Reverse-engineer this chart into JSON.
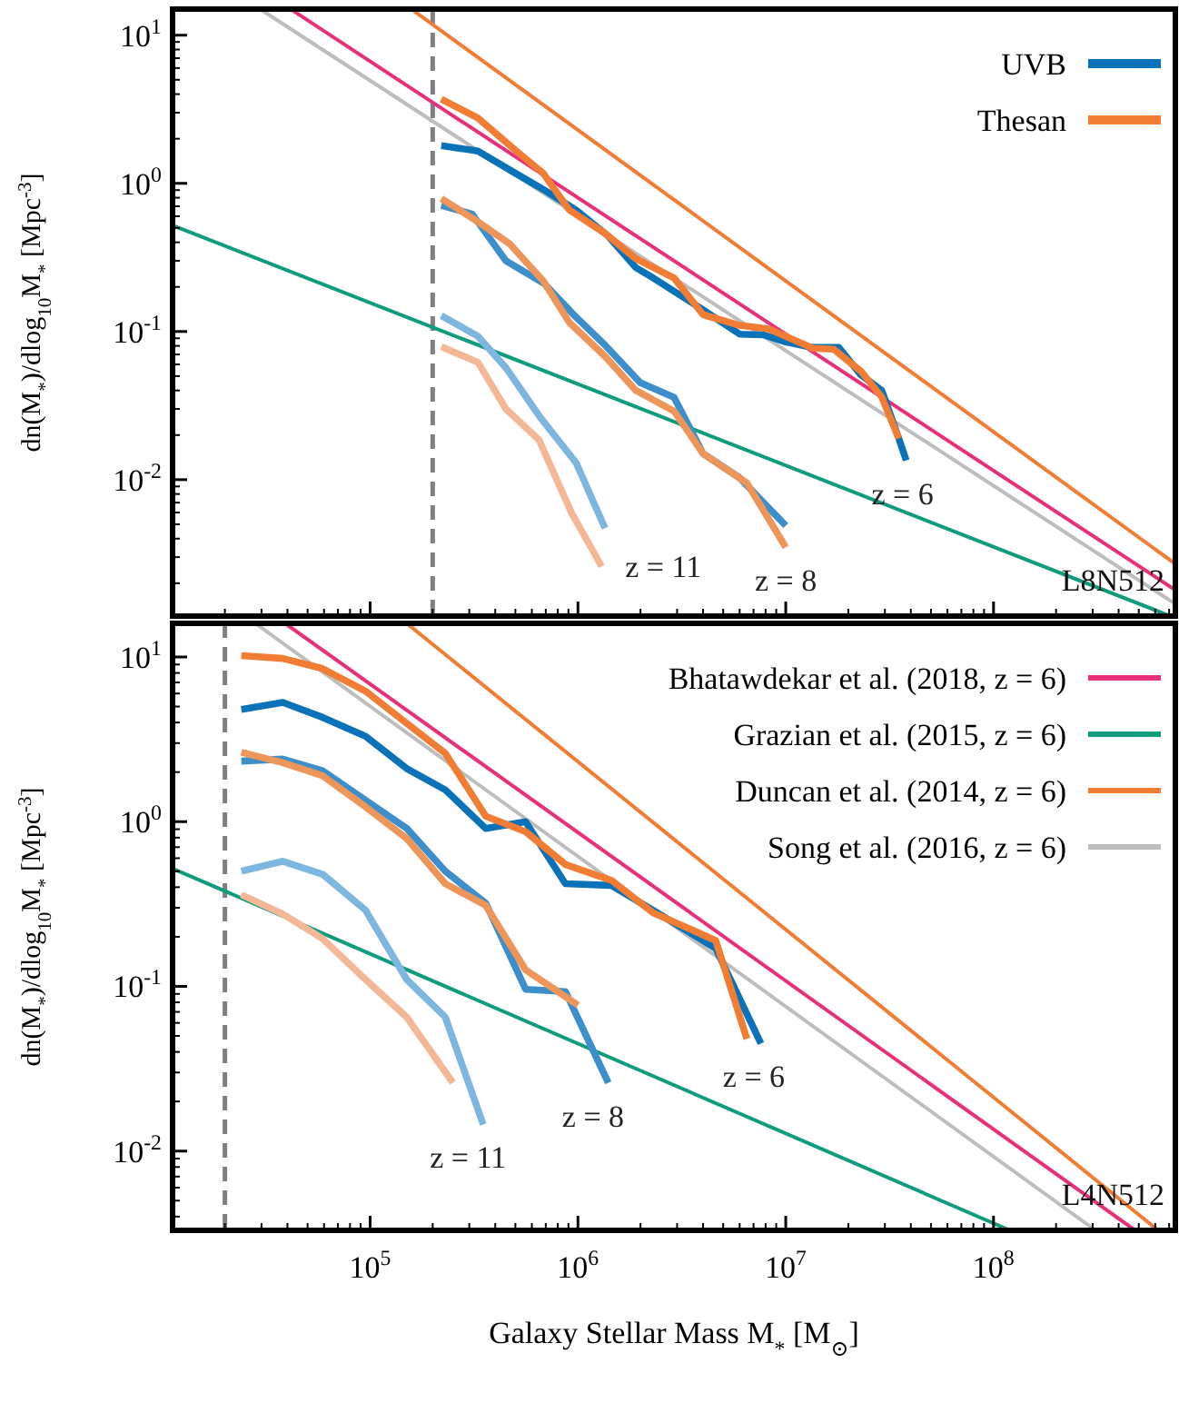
{
  "chart_data": [
    {
      "type": "line",
      "ylabel": "dn(M$_{*}$)/dlog$_{10}$M$_{*}$ [Mpc$^{-3}$]",
      "log": "xy",
      "legend": "top right",
      "tick_labels": "y",
      "xlim": [
        11200,
        750000000
      ],
      "ylim": [
        0.0012,
        15
      ],
      "xticks": [
        {
          "value": 20000,
          "label": null
        },
        {
          "value": 30000,
          "label": null
        },
        {
          "value": 40000,
          "label": null
        },
        {
          "value": 50000,
          "label": null
        },
        {
          "value": 60000,
          "label": null
        },
        {
          "value": 70000,
          "label": null
        },
        {
          "value": 80000,
          "label": null
        },
        {
          "value": 90000,
          "label": null
        },
        {
          "value": 100000,
          "label": null
        },
        {
          "value": 200000,
          "label": null
        },
        {
          "value": 300000,
          "label": null
        },
        {
          "value": 400000,
          "label": null
        },
        {
          "value": 500000,
          "label": null
        },
        {
          "value": 600000,
          "label": null
        },
        {
          "value": 700000,
          "label": null
        },
        {
          "value": 800000,
          "label": null
        },
        {
          "value": 900000,
          "label": null
        },
        {
          "value": 1000000,
          "label": null
        },
        {
          "value": 2000000,
          "label": null
        },
        {
          "value": 3000000,
          "label": null
        },
        {
          "value": 4000000,
          "label": null
        },
        {
          "value": 5000000,
          "label": null
        },
        {
          "value": 6000000,
          "label": null
        },
        {
          "value": 7000000,
          "label": null
        },
        {
          "value": 8000000,
          "label": null
        },
        {
          "value": 9000000,
          "label": null
        },
        {
          "value": 10000000,
          "label": null
        },
        {
          "value": 20000000,
          "label": null
        },
        {
          "value": 30000000,
          "label": null
        },
        {
          "value": 40000000,
          "label": null
        },
        {
          "value": 50000000,
          "label": null
        },
        {
          "value": 60000000,
          "label": null
        },
        {
          "value": 70000000,
          "label": null
        },
        {
          "value": 80000000,
          "label": null
        },
        {
          "value": 90000000,
          "label": null
        },
        {
          "value": 100000000,
          "label": null
        },
        {
          "value": 200000000,
          "label": null
        },
        {
          "value": 300000000,
          "label": null
        },
        {
          "value": 400000000,
          "label": null
        },
        {
          "value": 500000000,
          "label": null
        },
        {
          "value": 600000000,
          "label": null
        },
        {
          "value": 700000000,
          "label": null
        }
      ],
      "yticks": [
        {
          "value": 0.002,
          "label": null
        },
        {
          "value": 0.003,
          "label": null
        },
        {
          "value": 0.004,
          "label": null
        },
        {
          "value": 0.005,
          "label": null
        },
        {
          "value": 0.006,
          "label": null
        },
        {
          "value": 0.007,
          "label": null
        },
        {
          "value": 0.008,
          "label": null
        },
        {
          "value": 0.009,
          "label": null
        },
        {
          "value": 0.01,
          "label": "10$^{-2}$"
        },
        {
          "value": 0.02,
          "label": null
        },
        {
          "value": 0.03,
          "label": null
        },
        {
          "value": 0.04,
          "label": null
        },
        {
          "value": 0.05,
          "label": null
        },
        {
          "value": 0.06,
          "label": null
        },
        {
          "value": 0.07,
          "label": null
        },
        {
          "value": 0.08,
          "label": null
        },
        {
          "value": 0.09,
          "label": null
        },
        {
          "value": 0.1,
          "label": "10$^{-1}$"
        },
        {
          "value": 0.2,
          "label": null
        },
        {
          "value": 0.3,
          "label": null
        },
        {
          "value": 0.4,
          "label": null
        },
        {
          "value": 0.5,
          "label": null
        },
        {
          "value": 0.6,
          "label": null
        },
        {
          "value": 0.7,
          "label": null
        },
        {
          "value": 0.8,
          "label": null
        },
        {
          "value": 0.9,
          "label": null
        },
        {
          "value": 1,
          "label": "10$^{0}$"
        },
        {
          "value": 2,
          "label": null
        },
        {
          "value": 3,
          "label": null
        },
        {
          "value": 4,
          "label": null
        },
        {
          "value": 5,
          "label": null
        },
        {
          "value": 6,
          "label": null
        },
        {
          "value": 7,
          "label": null
        },
        {
          "value": 8,
          "label": null
        },
        {
          "value": 9,
          "label": null
        },
        {
          "value": 10,
          "label": "10$^{1}$"
        }
      ],
      "ref_lines": [
        {
          "axis": "x",
          "value": 200000,
          "color": "#808080",
          "line_style": "dashed"
        }
      ],
      "series": [
        {
          "color": "#e8307a",
          "x": [
            42000,
            750000000
          ],
          "values": [
            14.8,
            0.0018
          ]
        },
        {
          "color": "#0e9c7c",
          "x": [
            11200,
            710000000
          ],
          "values": [
            0.52,
            0.0012
          ]
        },
        {
          "color": "#f07d33",
          "x": [
            160000,
            750000000
          ],
          "values": [
            14.8,
            0.0027
          ]
        },
        {
          "color": "#bdbdbd",
          "x": [
            30000,
            750000000
          ],
          "values": [
            14.8,
            0.00145
          ]
        },
        {
          "name": "UVB",
          "color": "#0a72b8",
          "x": [
            220000,
            330000,
            500000,
            690000,
            980000,
            1400000,
            1900000,
            2300000,
            4000000,
            6000000,
            7800000,
            10000000,
            13500000,
            18000000,
            23000000,
            29000000,
            35000000,
            38000000
          ],
          "values": [
            1.8,
            1.65,
            1.17,
            0.9,
            0.66,
            0.44,
            0.27,
            0.23,
            0.14,
            0.096,
            0.095,
            0.085,
            0.078,
            0.078,
            0.051,
            0.04,
            0.019,
            0.0135
          ]
        },
        {
          "name": "Thesan",
          "color": "#f07d33",
          "x": [
            220000,
            330000,
            500000,
            680000,
            910000,
            1350000,
            1900000,
            2900000,
            4000000,
            6000000,
            8300000,
            13500000,
            17000000,
            23000000,
            29000000,
            35000000
          ],
          "values": [
            3.7,
            2.76,
            1.67,
            1.17,
            0.66,
            0.46,
            0.31,
            0.23,
            0.13,
            0.11,
            0.104,
            0.077,
            0.076,
            0.054,
            0.036,
            0.019
          ]
        },
        {
          "color": "#3d8fcb",
          "x": [
            220000,
            310000,
            450000,
            690000,
            980000,
            1350000,
            2000000,
            2900000,
            4000000,
            6000000,
            10000000
          ],
          "values": [
            0.71,
            0.62,
            0.3,
            0.21,
            0.125,
            0.081,
            0.045,
            0.036,
            0.015,
            0.0103,
            0.0049
          ]
        },
        {
          "color": "#ee955a",
          "x": [
            220000,
            330000,
            470000,
            680000,
            910000,
            1350000,
            1900000,
            2900000,
            4000000,
            6500000,
            10000000
          ],
          "values": [
            0.79,
            0.55,
            0.39,
            0.22,
            0.115,
            0.068,
            0.04,
            0.029,
            0.015,
            0.0095,
            0.0035
          ]
        },
        {
          "color": "#7db6de",
          "x": [
            220000,
            330000,
            450000,
            650000,
            980000,
            1350000
          ],
          "values": [
            0.128,
            0.093,
            0.057,
            0.027,
            0.013,
            0.0047
          ]
        },
        {
          "color": "#f5b896",
          "x": [
            220000,
            330000,
            450000,
            650000,
            930000,
            1300000
          ],
          "values": [
            0.079,
            0.062,
            0.03,
            0.0185,
            0.006,
            0.0026
          ]
        }
      ],
      "annotations": [
        "z = 6",
        "z = 8",
        "z = 11",
        "L8N512"
      ]
    },
    {
      "type": "line",
      "xlabel": "Galaxy Stellar Mass M$_{*}$ [M$_{⊙}$]",
      "ylabel": "dn(M$_{*}$)/dlog$_{10}$M$_{*}$ [Mpc$^{-3}$]",
      "log": "xy",
      "legend": "top right",
      "xlim": [
        11200,
        750000000
      ],
      "ylim": [
        0.0033,
        16
      ],
      "xticks": [
        {
          "value": 20000,
          "label": null
        },
        {
          "value": 30000,
          "label": null
        },
        {
          "value": 40000,
          "label": null
        },
        {
          "value": 50000,
          "label": null
        },
        {
          "value": 60000,
          "label": null
        },
        {
          "value": 70000,
          "label": null
        },
        {
          "value": 80000,
          "label": null
        },
        {
          "value": 90000,
          "label": null
        },
        {
          "value": 100000,
          "label": "10$^{5}$"
        },
        {
          "value": 200000,
          "label": null
        },
        {
          "value": 300000,
          "label": null
        },
        {
          "value": 400000,
          "label": null
        },
        {
          "value": 500000,
          "label": null
        },
        {
          "value": 600000,
          "label": null
        },
        {
          "value": 700000,
          "label": null
        },
        {
          "value": 800000,
          "label": null
        },
        {
          "value": 900000,
          "label": null
        },
        {
          "value": 1000000,
          "label": "10$^{6}$"
        },
        {
          "value": 2000000,
          "label": null
        },
        {
          "value": 3000000,
          "label": null
        },
        {
          "value": 4000000,
          "label": null
        },
        {
          "value": 5000000,
          "label": null
        },
        {
          "value": 6000000,
          "label": null
        },
        {
          "value": 7000000,
          "label": null
        },
        {
          "value": 8000000,
          "label": null
        },
        {
          "value": 9000000,
          "label": null
        },
        {
          "value": 10000000,
          "label": "10$^{7}$"
        },
        {
          "value": 20000000,
          "label": null
        },
        {
          "value": 30000000,
          "label": null
        },
        {
          "value": 40000000,
          "label": null
        },
        {
          "value": 50000000,
          "label": null
        },
        {
          "value": 60000000,
          "label": null
        },
        {
          "value": 70000000,
          "label": null
        },
        {
          "value": 80000000,
          "label": null
        },
        {
          "value": 90000000,
          "label": null
        },
        {
          "value": 100000000,
          "label": "10$^{8}$"
        },
        {
          "value": 200000000,
          "label": null
        },
        {
          "value": 300000000,
          "label": null
        },
        {
          "value": 400000000,
          "label": null
        },
        {
          "value": 500000000,
          "label": null
        },
        {
          "value": 600000000,
          "label": null
        },
        {
          "value": 700000000,
          "label": null
        }
      ],
      "yticks": [
        {
          "value": 0.004,
          "label": null
        },
        {
          "value": 0.005,
          "label": null
        },
        {
          "value": 0.006,
          "label": null
        },
        {
          "value": 0.007,
          "label": null
        },
        {
          "value": 0.008,
          "label": null
        },
        {
          "value": 0.009,
          "label": null
        },
        {
          "value": 0.01,
          "label": "10$^{-2}$"
        },
        {
          "value": 0.02,
          "label": null
        },
        {
          "value": 0.03,
          "label": null
        },
        {
          "value": 0.04,
          "label": null
        },
        {
          "value": 0.05,
          "label": null
        },
        {
          "value": 0.06,
          "label": null
        },
        {
          "value": 0.07,
          "label": null
        },
        {
          "value": 0.08,
          "label": null
        },
        {
          "value": 0.09,
          "label": null
        },
        {
          "value": 0.1,
          "label": "10$^{-1}$"
        },
        {
          "value": 0.2,
          "label": null
        },
        {
          "value": 0.3,
          "label": null
        },
        {
          "value": 0.4,
          "label": null
        },
        {
          "value": 0.5,
          "label": null
        },
        {
          "value": 0.6,
          "label": null
        },
        {
          "value": 0.7,
          "label": null
        },
        {
          "value": 0.8,
          "label": null
        },
        {
          "value": 0.9,
          "label": null
        },
        {
          "value": 1,
          "label": "10$^{0}$"
        },
        {
          "value": 2,
          "label": null
        },
        {
          "value": 3,
          "label": null
        },
        {
          "value": 4,
          "label": null
        },
        {
          "value": 5,
          "label": null
        },
        {
          "value": 6,
          "label": null
        },
        {
          "value": 7,
          "label": null
        },
        {
          "value": 8,
          "label": null
        },
        {
          "value": 9,
          "label": null
        },
        {
          "value": 10,
          "label": "10$^{1}$"
        }
      ],
      "ref_lines": [
        {
          "axis": "x",
          "value": 20000,
          "color": "#808080",
          "line_style": "dashed"
        }
      ],
      "series": [
        {
          "name": "Bhatawdekar et al. (2018, z = 6)",
          "color": "#e8307a",
          "x": [
            39000,
            480000000
          ],
          "values": [
            16,
            0.0033
          ]
        },
        {
          "name": "Grazian et al. (2015, z = 6)",
          "color": "#0e9c7c",
          "x": [
            11200,
            120000000
          ],
          "values": [
            0.52,
            0.0033
          ]
        },
        {
          "name": "Duncan et al. (2014, z = 6)",
          "color": "#f07d33",
          "x": [
            150000,
            620000000
          ],
          "values": [
            16,
            0.0033
          ]
        },
        {
          "name": "Song et al. (2016, z = 6)",
          "color": "#bdbdbd",
          "x": [
            28000,
            310000000
          ],
          "values": [
            16,
            0.0033
          ]
        },
        {
          "color": "#0a72b8",
          "x": [
            24000,
            38000,
            59000,
            95000,
            150000,
            230000,
            360000,
            560000,
            870000,
            1450000,
            2300000,
            4600000,
            7600000
          ],
          "values": [
            4.8,
            5.3,
            4.3,
            3.3,
            2.1,
            1.56,
            0.91,
            1.0,
            0.42,
            0.41,
            0.29,
            0.17,
            0.045
          ]
        },
        {
          "color": "#f07d33",
          "x": [
            24000,
            38000,
            59000,
            95000,
            150000,
            230000,
            360000,
            560000,
            870000,
            1450000,
            2300000,
            4600000,
            6500000
          ],
          "values": [
            10.2,
            9.8,
            8.5,
            6.2,
            3.96,
            2.6,
            1.08,
            0.87,
            0.55,
            0.44,
            0.28,
            0.19,
            0.048
          ]
        },
        {
          "color": "#3d8fcb",
          "x": [
            24000,
            38000,
            59000,
            95000,
            150000,
            230000,
            360000,
            560000,
            870000,
            1400000
          ],
          "values": [
            2.33,
            2.4,
            2.04,
            1.35,
            0.91,
            0.5,
            0.32,
            0.096,
            0.093,
            0.026
          ]
        },
        {
          "color": "#ee955a",
          "x": [
            24000,
            38000,
            59000,
            95000,
            150000,
            230000,
            360000,
            560000,
            1000000
          ],
          "values": [
            2.64,
            2.28,
            1.9,
            1.23,
            0.79,
            0.42,
            0.31,
            0.126,
            0.077
          ]
        },
        {
          "color": "#7db6de",
          "x": [
            24000,
            38000,
            59000,
            95000,
            150000,
            230000,
            350000
          ],
          "values": [
            0.5,
            0.575,
            0.48,
            0.29,
            0.11,
            0.065,
            0.0145
          ]
        },
        {
          "color": "#f5b896",
          "x": [
            24000,
            38000,
            59000,
            95000,
            150000,
            250000
          ],
          "values": [
            0.36,
            0.275,
            0.195,
            0.11,
            0.065,
            0.026
          ]
        }
      ],
      "annotations": [
        "z = 6",
        "z = 8",
        "z = 11",
        "L4N512"
      ]
    }
  ]
}
